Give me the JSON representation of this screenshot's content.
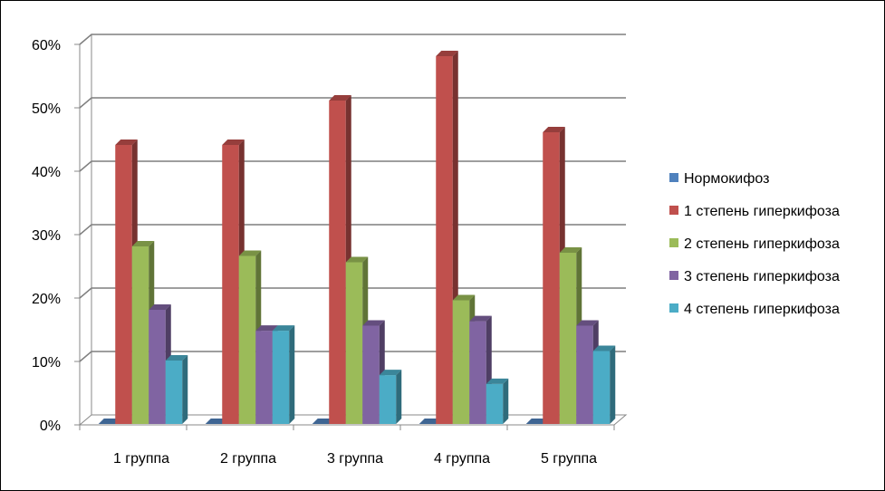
{
  "chart_data": {
    "type": "bar",
    "style": "3d-clustered-column",
    "categories": [
      "1 группа",
      "2 группа",
      "3 группа",
      "4 группа",
      "5 группа"
    ],
    "series": [
      {
        "name": "Нормокифоз",
        "color": "#4f81bd",
        "values": [
          0,
          0,
          0,
          0,
          0
        ]
      },
      {
        "name": "1 степень гиперкифоза",
        "color": "#c0504d",
        "values": [
          44,
          44,
          51,
          58,
          46
        ]
      },
      {
        "name": "2 степень гиперкифоза",
        "color": "#9bbb59",
        "values": [
          28,
          26.5,
          25.5,
          19.5,
          27
        ]
      },
      {
        "name": "3 степень гиперкифоза",
        "color": "#8064a2",
        "values": [
          18,
          14.7,
          15.5,
          16.2,
          15.5
        ]
      },
      {
        "name": "4 степень гиперкифоза",
        "color": "#4bacc6",
        "values": [
          10,
          14.7,
          7.7,
          6.3,
          11.5
        ]
      }
    ],
    "y_axis": {
      "min": 0,
      "max": 60,
      "step": 10,
      "tick_labels": [
        "0%",
        "10%",
        "20%",
        "30%",
        "40%",
        "50%",
        "60%"
      ]
    },
    "title": "",
    "xlabel": "",
    "ylabel": "",
    "grid": true,
    "legend_position": "right"
  }
}
